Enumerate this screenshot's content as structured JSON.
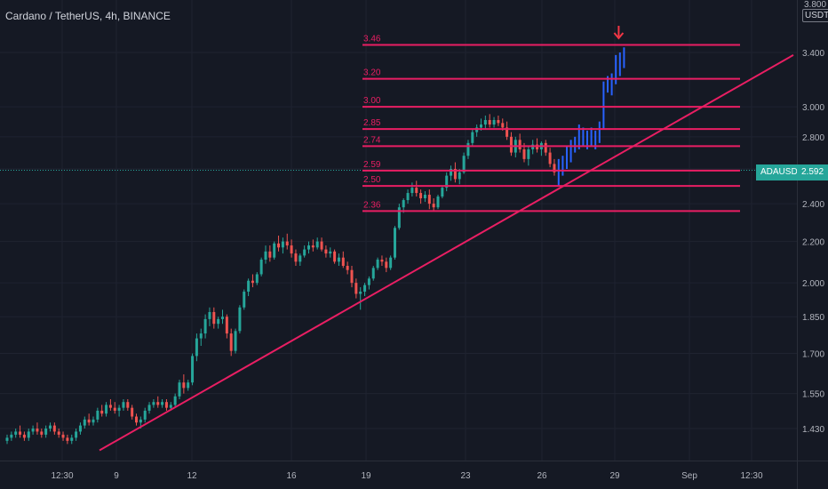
{
  "header": {
    "title": "Cardano / TetherUS, 4h, BINANCE"
  },
  "price_axis": {
    "top_partial_label": "3.800",
    "unit": "USDT",
    "current_price": "2.592",
    "ticker": "ADAUSDT"
  },
  "colors": {
    "background": "#151924",
    "grid": "#1f2330",
    "bull": "#26a69a",
    "bear": "#ef5350",
    "level": "#e91e63",
    "projection": "#2962ff",
    "arrow": "#f23645",
    "axis_text": "#b2b5be"
  },
  "chart_data": {
    "type": "candlestick",
    "title": "Cardano / TetherUS, 4h, BINANCE",
    "symbol": "ADAUSDT",
    "quote_unit": "USDT",
    "price_scale": "log",
    "grid": true,
    "y_ticks": [
      1.43,
      1.55,
      1.7,
      1.85,
      2.0,
      2.2,
      2.4,
      2.6,
      2.8,
      3.0,
      3.4
    ],
    "y_tick_labels": [
      "1.430",
      "1.550",
      "1.700",
      "1.850",
      "2.000",
      "2.200",
      "2.400",
      "2.600",
      "2.800",
      "3.000",
      "3.400"
    ],
    "x_tick_labels": [
      "12:30",
      "9",
      "12",
      "16",
      "19",
      "23",
      "26",
      "29",
      "Sep",
      "12:30"
    ],
    "current_price": 2.592,
    "horizontal_levels": [
      3.46,
      3.2,
      3.0,
      2.85,
      2.74,
      2.59,
      2.5,
      2.36
    ],
    "level_labels": [
      "3.46",
      "3.20",
      "3.00",
      "2.85",
      "2.74",
      "2.59",
      "2.50",
      "2.36"
    ],
    "trendline": {
      "from": [
        "Aug 8 12:00",
        1.36
      ],
      "to": [
        "Sep 2 04:00",
        3.38
      ]
    },
    "candles": [
      [
        1.39,
        1.41,
        1.38,
        1.4
      ],
      [
        1.4,
        1.42,
        1.39,
        1.41
      ],
      [
        1.41,
        1.43,
        1.4,
        1.42
      ],
      [
        1.42,
        1.44,
        1.4,
        1.41
      ],
      [
        1.41,
        1.42,
        1.39,
        1.4
      ],
      [
        1.4,
        1.43,
        1.39,
        1.42
      ],
      [
        1.42,
        1.44,
        1.41,
        1.43
      ],
      [
        1.43,
        1.45,
        1.41,
        1.42
      ],
      [
        1.42,
        1.43,
        1.4,
        1.41
      ],
      [
        1.41,
        1.44,
        1.4,
        1.43
      ],
      [
        1.43,
        1.45,
        1.42,
        1.44
      ],
      [
        1.44,
        1.45,
        1.41,
        1.42
      ],
      [
        1.42,
        1.43,
        1.4,
        1.41
      ],
      [
        1.41,
        1.42,
        1.39,
        1.4
      ],
      [
        1.4,
        1.41,
        1.38,
        1.39
      ],
      [
        1.39,
        1.41,
        1.38,
        1.4
      ],
      [
        1.4,
        1.43,
        1.39,
        1.42
      ],
      [
        1.42,
        1.45,
        1.41,
        1.44
      ],
      [
        1.44,
        1.47,
        1.43,
        1.46
      ],
      [
        1.46,
        1.48,
        1.44,
        1.45
      ],
      [
        1.45,
        1.47,
        1.44,
        1.46
      ],
      [
        1.46,
        1.5,
        1.45,
        1.49
      ],
      [
        1.49,
        1.51,
        1.47,
        1.48
      ],
      [
        1.48,
        1.52,
        1.47,
        1.51
      ],
      [
        1.51,
        1.53,
        1.49,
        1.5
      ],
      [
        1.5,
        1.52,
        1.48,
        1.49
      ],
      [
        1.49,
        1.51,
        1.47,
        1.5
      ],
      [
        1.5,
        1.53,
        1.49,
        1.52
      ],
      [
        1.52,
        1.53,
        1.49,
        1.5
      ],
      [
        1.5,
        1.51,
        1.46,
        1.47
      ],
      [
        1.47,
        1.48,
        1.44,
        1.45
      ],
      [
        1.45,
        1.47,
        1.43,
        1.46
      ],
      [
        1.46,
        1.5,
        1.45,
        1.49
      ],
      [
        1.49,
        1.52,
        1.48,
        1.51
      ],
      [
        1.51,
        1.53,
        1.5,
        1.52
      ],
      [
        1.52,
        1.54,
        1.5,
        1.51
      ],
      [
        1.51,
        1.53,
        1.5,
        1.52
      ],
      [
        1.52,
        1.53,
        1.49,
        1.5
      ],
      [
        1.5,
        1.52,
        1.49,
        1.51
      ],
      [
        1.51,
        1.55,
        1.5,
        1.54
      ],
      [
        1.54,
        1.6,
        1.53,
        1.59
      ],
      [
        1.59,
        1.62,
        1.55,
        1.57
      ],
      [
        1.57,
        1.6,
        1.56,
        1.59
      ],
      [
        1.59,
        1.7,
        1.58,
        1.69
      ],
      [
        1.69,
        1.78,
        1.67,
        1.76
      ],
      [
        1.76,
        1.8,
        1.73,
        1.78
      ],
      [
        1.78,
        1.86,
        1.76,
        1.84
      ],
      [
        1.84,
        1.89,
        1.81,
        1.87
      ],
      [
        1.87,
        1.89,
        1.8,
        1.82
      ],
      [
        1.82,
        1.85,
        1.8,
        1.84
      ],
      [
        1.84,
        1.88,
        1.82,
        1.85
      ],
      [
        1.85,
        1.86,
        1.76,
        1.78
      ],
      [
        1.78,
        1.8,
        1.69,
        1.71
      ],
      [
        1.71,
        1.8,
        1.7,
        1.79
      ],
      [
        1.79,
        1.9,
        1.78,
        1.89
      ],
      [
        1.89,
        1.97,
        1.88,
        1.96
      ],
      [
        1.96,
        2.02,
        1.94,
        2.01
      ],
      [
        2.01,
        2.04,
        1.98,
        2.0
      ],
      [
        2.0,
        2.05,
        1.99,
        2.04
      ],
      [
        2.04,
        2.12,
        2.03,
        2.11
      ],
      [
        2.11,
        2.18,
        2.09,
        2.15
      ],
      [
        2.15,
        2.18,
        2.1,
        2.12
      ],
      [
        2.12,
        2.2,
        2.11,
        2.19
      ],
      [
        2.19,
        2.23,
        2.15,
        2.17
      ],
      [
        2.17,
        2.22,
        2.14,
        2.2
      ],
      [
        2.2,
        2.24,
        2.16,
        2.18
      ],
      [
        2.18,
        2.21,
        2.12,
        2.14
      ],
      [
        2.14,
        2.16,
        2.08,
        2.1
      ],
      [
        2.1,
        2.14,
        2.08,
        2.13
      ],
      [
        2.13,
        2.18,
        2.12,
        2.16
      ],
      [
        2.16,
        2.2,
        2.14,
        2.18
      ],
      [
        2.18,
        2.21,
        2.15,
        2.17
      ],
      [
        2.17,
        2.22,
        2.16,
        2.2
      ],
      [
        2.2,
        2.22,
        2.15,
        2.16
      ],
      [
        2.16,
        2.18,
        2.12,
        2.14
      ],
      [
        2.14,
        2.17,
        2.12,
        2.15
      ],
      [
        2.15,
        2.16,
        2.09,
        2.1
      ],
      [
        2.1,
        2.14,
        2.08,
        2.12
      ],
      [
        2.12,
        2.15,
        2.07,
        2.08
      ],
      [
        2.08,
        2.1,
        2.04,
        2.06
      ],
      [
        2.06,
        2.08,
        1.98,
        2.0
      ],
      [
        2.0,
        2.02,
        1.93,
        1.95
      ],
      [
        1.95,
        1.98,
        1.88,
        1.96
      ],
      [
        1.96,
        2.0,
        1.94,
        1.99
      ],
      [
        1.99,
        2.03,
        1.97,
        2.02
      ],
      [
        2.02,
        2.08,
        2.01,
        2.07
      ],
      [
        2.07,
        2.12,
        2.06,
        2.11
      ],
      [
        2.11,
        2.13,
        2.08,
        2.1
      ],
      [
        2.1,
        2.12,
        2.05,
        2.07
      ],
      [
        2.07,
        2.13,
        2.06,
        2.12
      ],
      [
        2.12,
        2.28,
        2.11,
        2.27
      ],
      [
        2.27,
        2.4,
        2.26,
        2.38
      ],
      [
        2.38,
        2.43,
        2.35,
        2.42
      ],
      [
        2.42,
        2.48,
        2.4,
        2.46
      ],
      [
        2.46,
        2.52,
        2.44,
        2.49
      ],
      [
        2.49,
        2.53,
        2.44,
        2.46
      ],
      [
        2.46,
        2.48,
        2.4,
        2.43
      ],
      [
        2.43,
        2.47,
        2.41,
        2.45
      ],
      [
        2.45,
        2.48,
        2.37,
        2.4
      ],
      [
        2.4,
        2.43,
        2.36,
        2.38
      ],
      [
        2.38,
        2.45,
        2.37,
        2.44
      ],
      [
        2.44,
        2.5,
        2.43,
        2.49
      ],
      [
        2.49,
        2.58,
        2.47,
        2.56
      ],
      [
        2.56,
        2.62,
        2.53,
        2.6
      ],
      [
        2.6,
        2.64,
        2.52,
        2.54
      ],
      [
        2.54,
        2.6,
        2.51,
        2.58
      ],
      [
        2.58,
        2.7,
        2.57,
        2.68
      ],
      [
        2.68,
        2.78,
        2.66,
        2.76
      ],
      [
        2.76,
        2.85,
        2.74,
        2.83
      ],
      [
        2.83,
        2.88,
        2.8,
        2.86
      ],
      [
        2.86,
        2.92,
        2.84,
        2.88
      ],
      [
        2.88,
        2.94,
        2.85,
        2.91
      ],
      [
        2.91,
        2.95,
        2.86,
        2.88
      ],
      [
        2.88,
        2.93,
        2.86,
        2.91
      ],
      [
        2.91,
        2.94,
        2.87,
        2.89
      ],
      [
        2.89,
        2.92,
        2.84,
        2.86
      ],
      [
        2.86,
        2.9,
        2.78,
        2.8
      ],
      [
        2.8,
        2.83,
        2.68,
        2.7
      ],
      [
        2.7,
        2.8,
        2.67,
        2.78
      ],
      [
        2.78,
        2.82,
        2.7,
        2.72
      ],
      [
        2.72,
        2.76,
        2.64,
        2.66
      ],
      [
        2.66,
        2.74,
        2.62,
        2.72
      ],
      [
        2.72,
        2.78,
        2.69,
        2.75
      ],
      [
        2.75,
        2.79,
        2.7,
        2.72
      ],
      [
        2.72,
        2.77,
        2.68,
        2.76
      ],
      [
        2.76,
        2.78,
        2.68,
        2.7
      ],
      [
        2.7,
        2.73,
        2.61,
        2.63
      ],
      [
        2.63,
        2.66,
        2.56,
        2.58
      ]
    ],
    "projection_bars": [
      [
        2.5,
        2.66
      ],
      [
        2.56,
        2.68
      ],
      [
        2.6,
        2.74
      ],
      [
        2.64,
        2.78
      ],
      [
        2.7,
        2.8
      ],
      [
        2.72,
        2.88
      ],
      [
        2.74,
        2.86
      ],
      [
        2.72,
        2.84
      ],
      [
        2.74,
        2.86
      ],
      [
        2.72,
        2.84
      ],
      [
        2.76,
        2.9
      ],
      [
        2.85,
        3.18
      ],
      [
        3.1,
        3.22
      ],
      [
        3.08,
        3.24
      ],
      [
        3.16,
        3.38
      ],
      [
        3.22,
        3.4
      ],
      [
        3.28,
        3.44
      ]
    ]
  }
}
